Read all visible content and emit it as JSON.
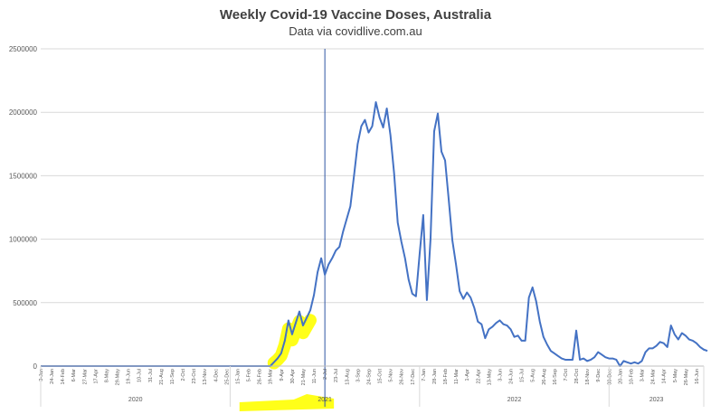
{
  "chart_data": {
    "type": "line",
    "title": "Weekly Covid-19 Vaccine Doses, Australia",
    "subtitle": "Data via covidlive.com.au",
    "ylim": [
      0,
      2500000
    ],
    "yticks": [
      "0",
      "500000",
      "1000000",
      "1500000",
      "2000000",
      "2500000"
    ],
    "grid": "horizontal",
    "line_color": "#4472c4",
    "marker_line_color": "#2f55a4",
    "highlight_color": "#ffff00",
    "x_tick_labels": [
      "3-Jan",
      "24-Jan",
      "14-Feb",
      "6-Mar",
      "27-Mar",
      "17-Apr",
      "8-May",
      "29-May",
      "19-Jun",
      "10-Jul",
      "31-Jul",
      "21-Aug",
      "11-Sep",
      "2-Oct",
      "23-Oct",
      "13-Nov",
      "4-Dec",
      "25-Dec",
      "15-Jan",
      "5-Feb",
      "26-Feb",
      "19-Mar",
      "9-Apr",
      "30-Apr",
      "21-May",
      "11-Jun",
      "2-Jul",
      "23-Jul",
      "13-Aug",
      "3-Sep",
      "24-Sep",
      "15-Oct",
      "5-Nov",
      "26-Nov",
      "17-Dec",
      "7-Jan",
      "28-Jan",
      "18-Feb",
      "11-Mar",
      "1-Apr",
      "22-Apr",
      "13-May",
      "3-Jun",
      "24-Jun",
      "15-Jul",
      "5-Aug",
      "26-Aug",
      "16-Sep",
      "7-Oct",
      "28-Oct",
      "18-Nov",
      "9-Dec",
      "30-Dec",
      "20-Jan",
      "10-Feb",
      "3-Mar",
      "24-Mar",
      "14-Apr",
      "5-May",
      "26-May",
      "16-Jun"
    ],
    "year_labels": [
      "2020",
      "2021",
      "2022",
      "2023"
    ],
    "year_starts": [
      0,
      52,
      104,
      156
    ],
    "vertical_marker_week": 78,
    "highlight_weeks": [
      64,
      74
    ],
    "x_week_count": 182,
    "series": [
      {
        "values": [
          0,
          0,
          0,
          0,
          0,
          0,
          0,
          0,
          0,
          0,
          0,
          0,
          0,
          0,
          0,
          0,
          0,
          0,
          0,
          0,
          0,
          0,
          0,
          0,
          0,
          0,
          0,
          0,
          0,
          0,
          0,
          0,
          0,
          0,
          0,
          0,
          0,
          0,
          0,
          0,
          0,
          0,
          0,
          0,
          0,
          0,
          0,
          0,
          0,
          0,
          0,
          0,
          0,
          0,
          0,
          0,
          0,
          0,
          0,
          0,
          0,
          0,
          0,
          0,
          30000,
          60000,
          100000,
          200000,
          360000,
          250000,
          340000,
          430000,
          320000,
          380000,
          440000,
          560000,
          740000,
          850000,
          720000,
          800000,
          850000,
          910000,
          940000,
          1060000,
          1160000,
          1260000,
          1500000,
          1750000,
          1890000,
          1940000,
          1840000,
          1890000,
          2080000,
          1960000,
          1880000,
          2030000,
          1820000,
          1520000,
          1130000,
          980000,
          850000,
          680000,
          570000,
          550000,
          880000,
          1190000,
          520000,
          1000000,
          1850000,
          1990000,
          1690000,
          1620000,
          1310000,
          990000,
          800000,
          590000,
          530000,
          580000,
          540000,
          460000,
          350000,
          330000,
          220000,
          290000,
          310000,
          340000,
          360000,
          330000,
          320000,
          290000,
          230000,
          240000,
          200000,
          200000,
          540000,
          620000,
          510000,
          350000,
          230000,
          170000,
          120000,
          100000,
          80000,
          60000,
          50000,
          50000,
          50000,
          280000,
          50000,
          60000,
          40000,
          50000,
          70000,
          110000,
          90000,
          70000,
          60000,
          60000,
          50000,
          0,
          40000,
          30000,
          20000,
          30000,
          20000,
          40000,
          110000,
          140000,
          140000,
          160000,
          190000,
          180000,
          150000,
          320000,
          250000,
          210000,
          260000,
          240000,
          210000,
          200000,
          180000,
          150000,
          130000,
          120000
        ]
      }
    ]
  }
}
